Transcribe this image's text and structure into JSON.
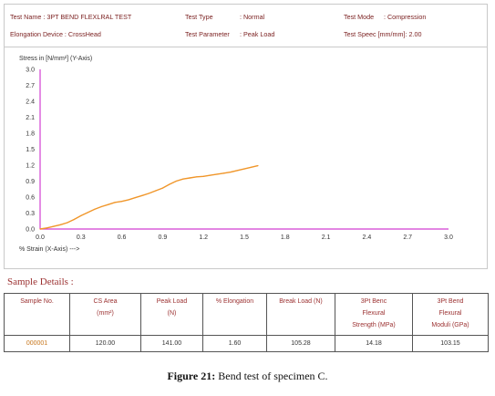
{
  "header": {
    "test_name": "Test Name : 3PT BEND FLEXLRAL TEST",
    "elongation_device": "Elongation Device : CrossHead",
    "test_type_label": "Test Type",
    "test_type_value": ": Normal",
    "test_param_label": "Test Parameter",
    "test_param_value": ": Peak Load",
    "test_mode_label": "Test Mode",
    "test_mode_value": ": Compression",
    "test_speed": "Test Speec  [mm/mm]: 2.00"
  },
  "chart_data": {
    "type": "line",
    "ylabel": "Stress in [N/mm²] (Y-Axis)",
    "xlabel": "% Strain (X-Axis) --->",
    "xlim": [
      0.0,
      3.0
    ],
    "ylim": [
      0.0,
      3.0
    ],
    "x_ticks": [
      "0.0",
      "0.3",
      "0.6",
      "0.9",
      "1.2",
      "1.5",
      "1.8",
      "2.1",
      "2.4",
      "2.7",
      "3.0"
    ],
    "y_ticks": [
      "0.0",
      "0.3",
      "0.6",
      "0.9",
      "1.2",
      "1.5",
      "1.8",
      "2.1",
      "2.4",
      "2.7",
      "3.0"
    ],
    "grid": false,
    "series": [
      {
        "color": "#f0962a",
        "x": [
          0.0,
          0.05,
          0.1,
          0.15,
          0.2,
          0.25,
          0.3,
          0.35,
          0.4,
          0.45,
          0.5,
          0.55,
          0.6,
          0.65,
          0.7,
          0.75,
          0.8,
          0.85,
          0.9,
          0.95,
          1.0,
          1.05,
          1.1,
          1.15,
          1.2,
          1.25,
          1.3,
          1.35,
          1.4,
          1.45,
          1.5,
          1.55,
          1.6
        ],
        "y": [
          0.0,
          0.02,
          0.05,
          0.08,
          0.12,
          0.18,
          0.25,
          0.31,
          0.37,
          0.42,
          0.46,
          0.5,
          0.52,
          0.55,
          0.59,
          0.63,
          0.67,
          0.72,
          0.77,
          0.84,
          0.9,
          0.94,
          0.96,
          0.98,
          0.99,
          1.01,
          1.03,
          1.05,
          1.07,
          1.1,
          1.13,
          1.16,
          1.19
        ]
      }
    ]
  },
  "sample_details": {
    "title": "Sample Details :",
    "headers": [
      "Sample No.",
      "CS Area\n(mm²)",
      "Peak Load\n(N)",
      "% Elongation",
      "Break Load (N)",
      "3Pt Benc\nFlexural\nStrength (MPa)",
      "3Pt Bend\nFlexural\nModuli (GPa)"
    ],
    "row": [
      "000001",
      "120.00",
      "141.00",
      "1.60",
      "105.28",
      "14.18",
      "103.15"
    ]
  },
  "caption": {
    "label": "Figure 21:",
    "text": " Bend test of specimen C."
  }
}
